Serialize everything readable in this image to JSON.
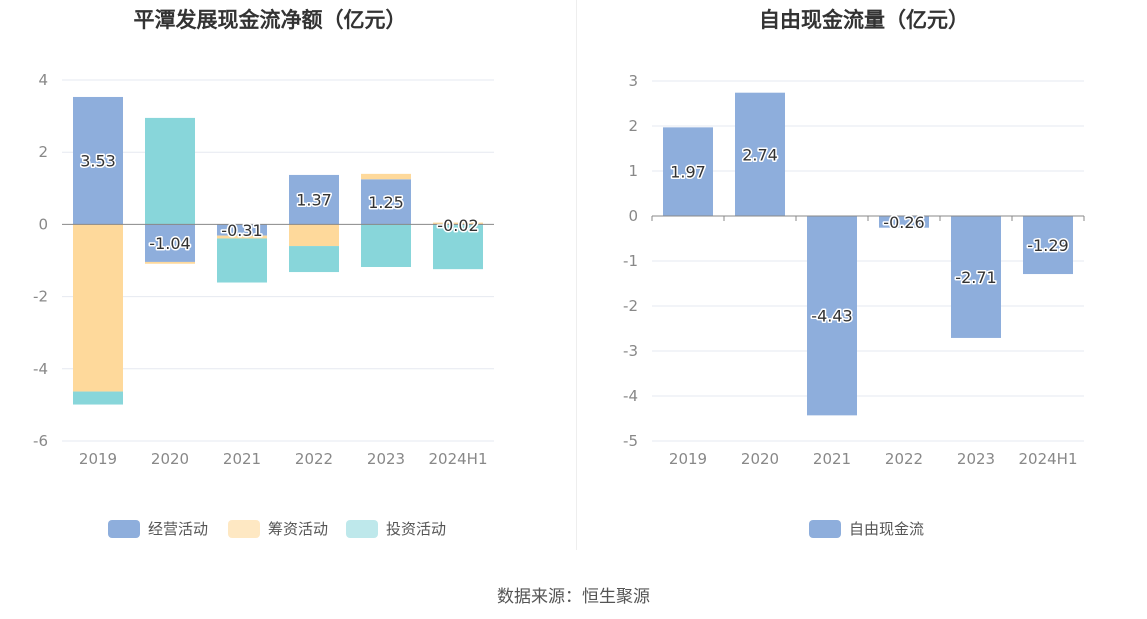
{
  "chart_data": [
    {
      "type": "bar",
      "stacked": true,
      "title": "平潭发展现金流净额（亿元）",
      "categories": [
        "2019",
        "2020",
        "2021",
        "2022",
        "2023",
        "2024H1"
      ],
      "ylim": [
        -6,
        4
      ],
      "yticks": [
        "4",
        "2",
        "0",
        "-2",
        "-4",
        "-6"
      ],
      "grid": true,
      "legend_position": "bottom",
      "series": [
        {
          "name": "经营活动",
          "color": "#8eaedc",
          "values": [
            3.53,
            -1.04,
            -0.31,
            1.37,
            1.25,
            -0.02
          ]
        },
        {
          "name": "筹资活动",
          "color": "#fed99b",
          "values": [
            -4.63,
            -0.05,
            -0.08,
            -0.6,
            0.15,
            0.05
          ]
        },
        {
          "name": "投资活动",
          "color": "#88d6da",
          "values": [
            -0.36,
            2.95,
            -1.22,
            -0.72,
            -1.18,
            -1.22
          ]
        }
      ],
      "data_labels": [
        "3.53",
        "-1.04",
        "-0.31",
        "1.37",
        "1.25",
        "-0.02"
      ]
    },
    {
      "type": "bar",
      "title": "自由现金流量（亿元）",
      "categories": [
        "2019",
        "2020",
        "2021",
        "2022",
        "2023",
        "2024H1"
      ],
      "ylim": [
        -5,
        3
      ],
      "yticks": [
        "3",
        "2",
        "1",
        "0",
        "-1",
        "-2",
        "-3",
        "-4",
        "-5"
      ],
      "grid": true,
      "legend_position": "bottom",
      "series": [
        {
          "name": "自由现金流",
          "color": "#8eaedc",
          "values": [
            1.97,
            2.74,
            -4.43,
            -0.26,
            -2.71,
            -1.29
          ]
        }
      ],
      "data_labels": [
        "1.97",
        "2.74",
        "-4.43",
        "-0.26",
        "-2.71",
        "-1.29"
      ]
    }
  ],
  "source_text": "数据来源：恒生聚源"
}
